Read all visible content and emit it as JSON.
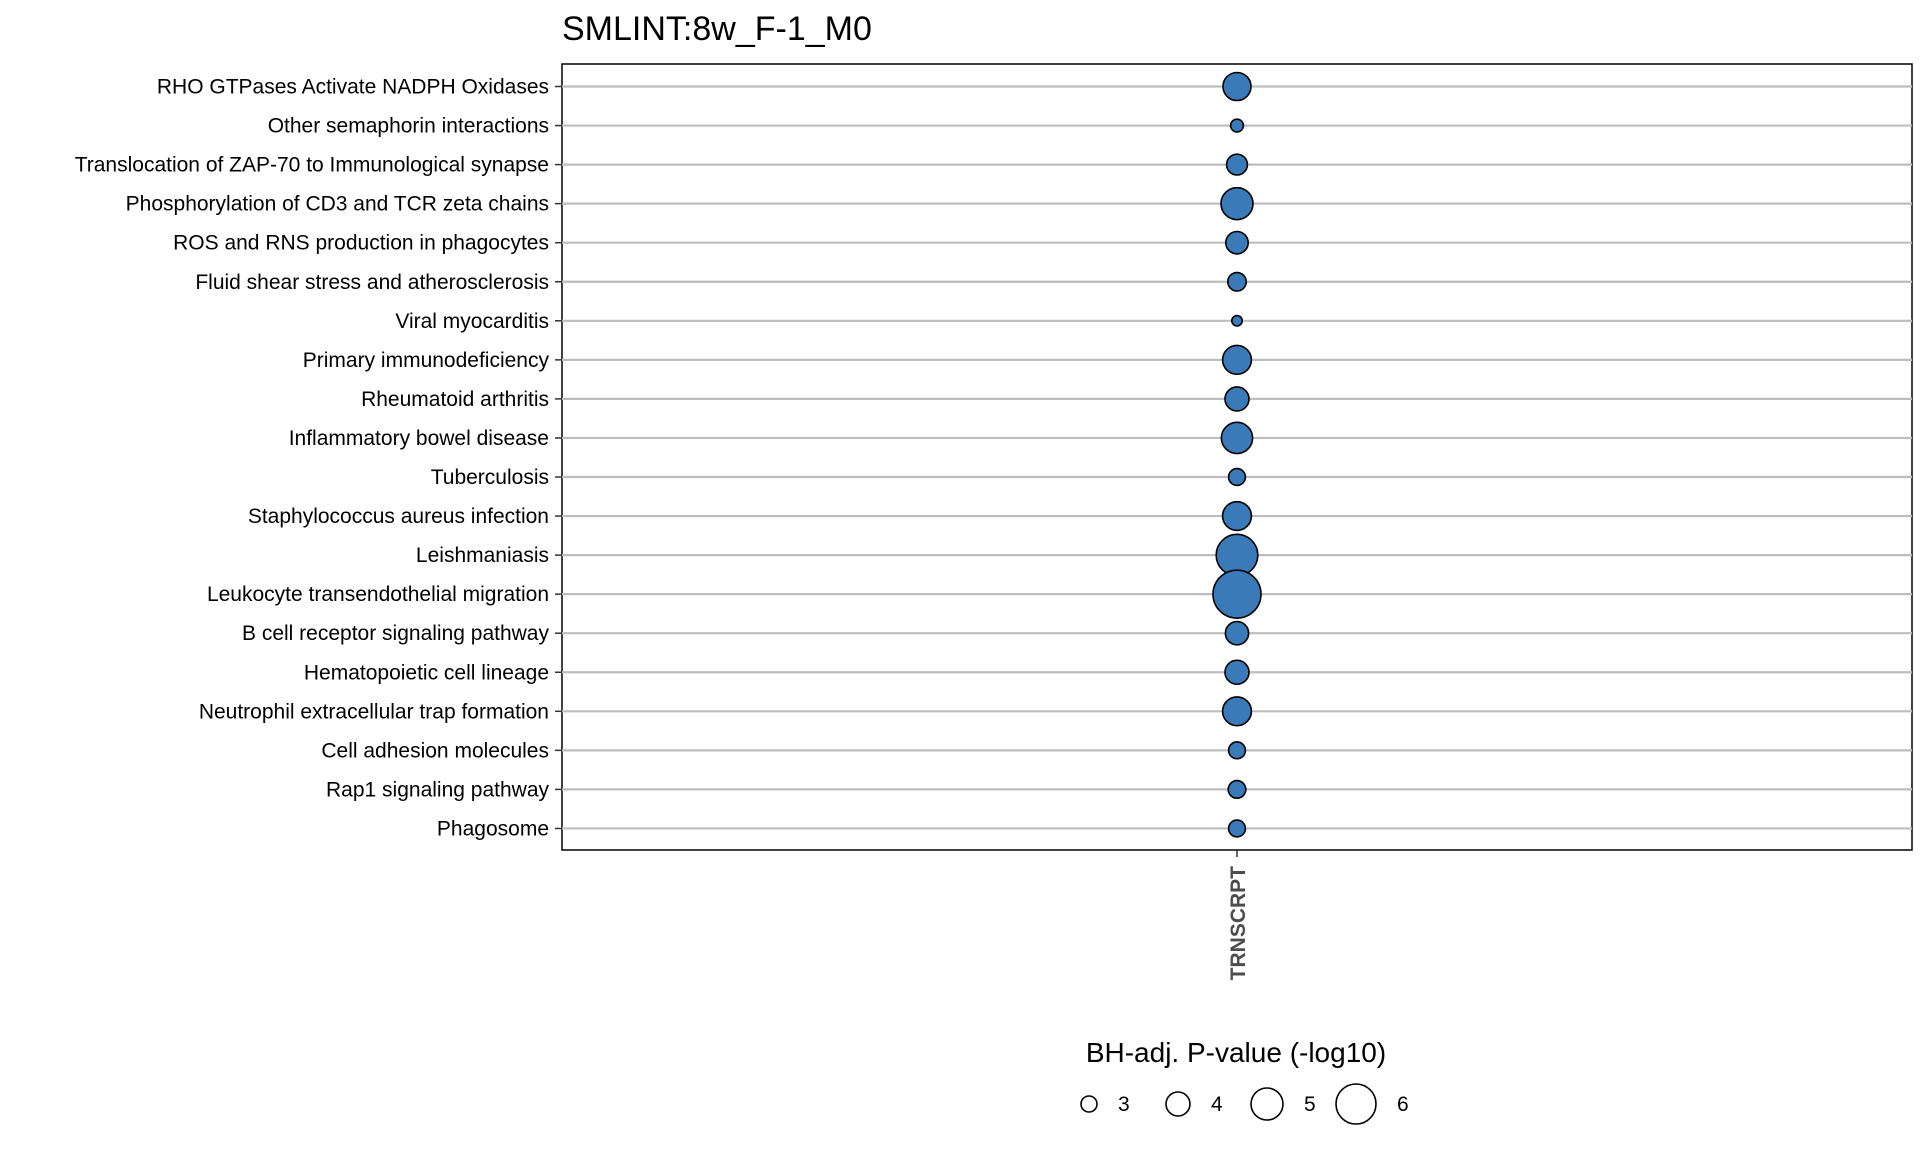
{
  "chart_data": {
    "type": "scatter",
    "title": "SMLINT:8w_F-1_M0",
    "x_categories": [
      "TRNSCRPT"
    ],
    "y_categories": [
      "RHO GTPases Activate NADPH Oxidases",
      "Other semaphorin interactions",
      "Translocation of ZAP-70 to Immunological synapse",
      "Phosphorylation of CD3 and TCR zeta chains",
      "ROS and RNS production in phagocytes",
      "Fluid shear stress and atherosclerosis",
      "Viral myocarditis",
      "Primary immunodeficiency",
      "Rheumatoid arthritis",
      "Inflammatory bowel disease",
      "Tuberculosis",
      "Staphylococcus aureus infection",
      "Leishmaniasis",
      "Leukocyte transendothelial migration",
      "B cell receptor signaling pathway",
      "Hematopoietic cell lineage",
      "Neutrophil extracellular trap formation",
      "Cell adhesion molecules",
      "Rap1 signaling pathway",
      "Phagosome"
    ],
    "points": [
      {
        "x": "TRNSCRPT",
        "y": "RHO GTPases Activate NADPH Oxidases",
        "size": 4.5
      },
      {
        "x": "TRNSCRPT",
        "y": "Other semaphorin interactions",
        "size": 2.6
      },
      {
        "x": "TRNSCRPT",
        "y": "Translocation of ZAP-70 to Immunological synapse",
        "size": 3.6
      },
      {
        "x": "TRNSCRPT",
        "y": "Phosphorylation of CD3 and TCR zeta chains",
        "size": 5.0
      },
      {
        "x": "TRNSCRPT",
        "y": "ROS and RNS production in phagocytes",
        "size": 3.8
      },
      {
        "x": "TRNSCRPT",
        "y": "Fluid shear stress and atherosclerosis",
        "size": 3.3
      },
      {
        "x": "TRNSCRPT",
        "y": "Viral myocarditis",
        "size": 2.3
      },
      {
        "x": "TRNSCRPT",
        "y": "Primary immunodeficiency",
        "size": 4.6
      },
      {
        "x": "TRNSCRPT",
        "y": "Rheumatoid arthritis",
        "size": 4.0
      },
      {
        "x": "TRNSCRPT",
        "y": "Inflammatory bowel disease",
        "size": 4.9
      },
      {
        "x": "TRNSCRPT",
        "y": "Tuberculosis",
        "size": 3.1
      },
      {
        "x": "TRNSCRPT",
        "y": "Staphylococcus aureus infection",
        "size": 4.6
      },
      {
        "x": "TRNSCRPT",
        "y": "Leishmaniasis",
        "size": 6.2
      },
      {
        "x": "TRNSCRPT",
        "y": "Leukocyte transendothelial migration",
        "size": 7.0
      },
      {
        "x": "TRNSCRPT",
        "y": "B cell receptor signaling pathway",
        "size": 3.9
      },
      {
        "x": "TRNSCRPT",
        "y": "Hematopoietic cell lineage",
        "size": 4.0
      },
      {
        "x": "TRNSCRPT",
        "y": "Neutrophil extracellular trap formation",
        "size": 4.6
      },
      {
        "x": "TRNSCRPT",
        "y": "Cell adhesion molecules",
        "size": 3.1
      },
      {
        "x": "TRNSCRPT",
        "y": "Rap1 signaling pathway",
        "size": 3.2
      },
      {
        "x": "TRNSCRPT",
        "y": "Phagosome",
        "size": 3.1
      }
    ],
    "legend": {
      "title": "BH-adj. P-value (-log10)",
      "placement": "bottom",
      "values": [
        3,
        4,
        5,
        6
      ],
      "labels": [
        "3",
        "4",
        "5",
        "6"
      ]
    },
    "point_color": "#3a7ab8",
    "grid": true
  }
}
